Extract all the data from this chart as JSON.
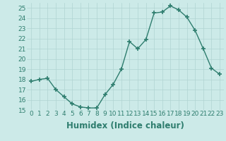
{
  "x": [
    0,
    1,
    2,
    3,
    4,
    5,
    6,
    7,
    8,
    9,
    10,
    11,
    12,
    13,
    14,
    15,
    16,
    17,
    18,
    19,
    20,
    21,
    22,
    23
  ],
  "y": [
    17.8,
    18.0,
    18.1,
    17.0,
    16.3,
    15.6,
    15.3,
    15.2,
    15.2,
    16.5,
    17.5,
    19.0,
    21.7,
    21.0,
    21.9,
    24.5,
    24.6,
    25.2,
    24.8,
    24.1,
    22.8,
    21.0,
    19.1,
    18.5
  ],
  "xlabel": "Humidex (Indice chaleur)",
  "ylim": [
    15,
    25.5
  ],
  "xlim": [
    -0.5,
    23.5
  ],
  "yticks": [
    15,
    16,
    17,
    18,
    19,
    20,
    21,
    22,
    23,
    24,
    25
  ],
  "xticks": [
    0,
    1,
    2,
    3,
    4,
    5,
    6,
    7,
    8,
    9,
    10,
    11,
    12,
    13,
    14,
    15,
    16,
    17,
    18,
    19,
    20,
    21,
    22,
    23
  ],
  "line_color": "#2e7d6e",
  "marker": "+",
  "bg_color": "#cceae8",
  "grid_color": "#b0d4d2",
  "tick_label_fontsize": 6.5,
  "xlabel_fontsize": 8.5
}
